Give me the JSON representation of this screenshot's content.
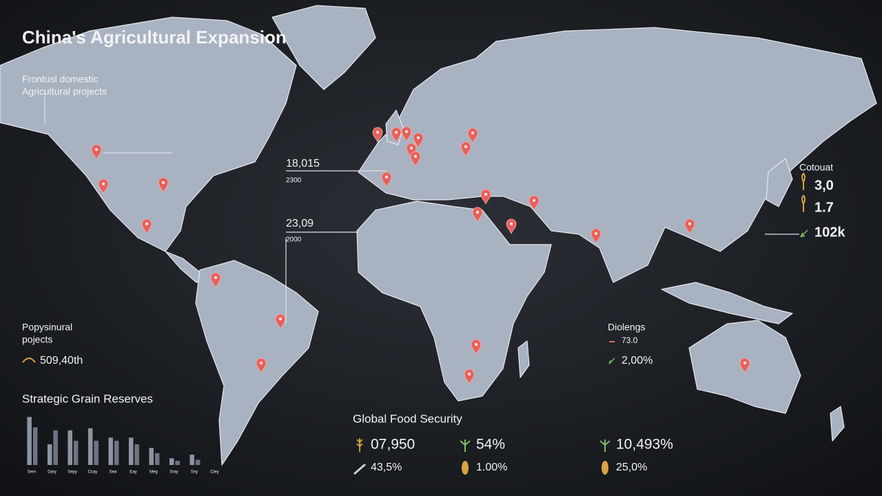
{
  "header": {
    "title": "China's Agricultural Expansion"
  },
  "left_note": {
    "lines": [
      "Frontusl domestic",
      "Agricultural projects"
    ]
  },
  "callouts": [
    {
      "value": "18,015",
      "sub": "2300"
    },
    {
      "value": "23,09",
      "sub": "2000"
    }
  ],
  "right_panel": {
    "title": "Cotouat",
    "stats": [
      "3,0",
      "1.7",
      "102k"
    ]
  },
  "projects_panel": {
    "lines": [
      "Popysinural",
      "pojects"
    ],
    "value": "509,40th"
  },
  "dialogs_panel": {
    "title": "Diolengs",
    "stats": [
      "73.0",
      "2,00%"
    ]
  },
  "food_security": {
    "title": "Global Food Security",
    "stats": [
      [
        "07,950",
        "43,5%"
      ],
      [
        "54%",
        "1.00%"
      ],
      [
        "10,493%",
        "25,0%"
      ]
    ]
  },
  "chart_data": {
    "type": "bar",
    "title": "Strategic Grain Reserves",
    "categories": [
      "Sem",
      "Dary",
      "Sepy",
      "Ccay",
      "Sea",
      "Eay",
      "Meg",
      "Sray",
      "Sny",
      "Ctey"
    ],
    "series": [
      {
        "color": "#8d95a3",
        "values": [
          93,
          40,
          67,
          71,
          53,
          53,
          33,
          13,
          20,
          null
        ]
      },
      {
        "color": "#6d7482",
        "values": [
          73,
          67,
          47,
          47,
          47,
          40,
          23,
          8,
          10,
          null
        ]
      }
    ],
    "ylim": [
      0,
      100
    ]
  }
}
